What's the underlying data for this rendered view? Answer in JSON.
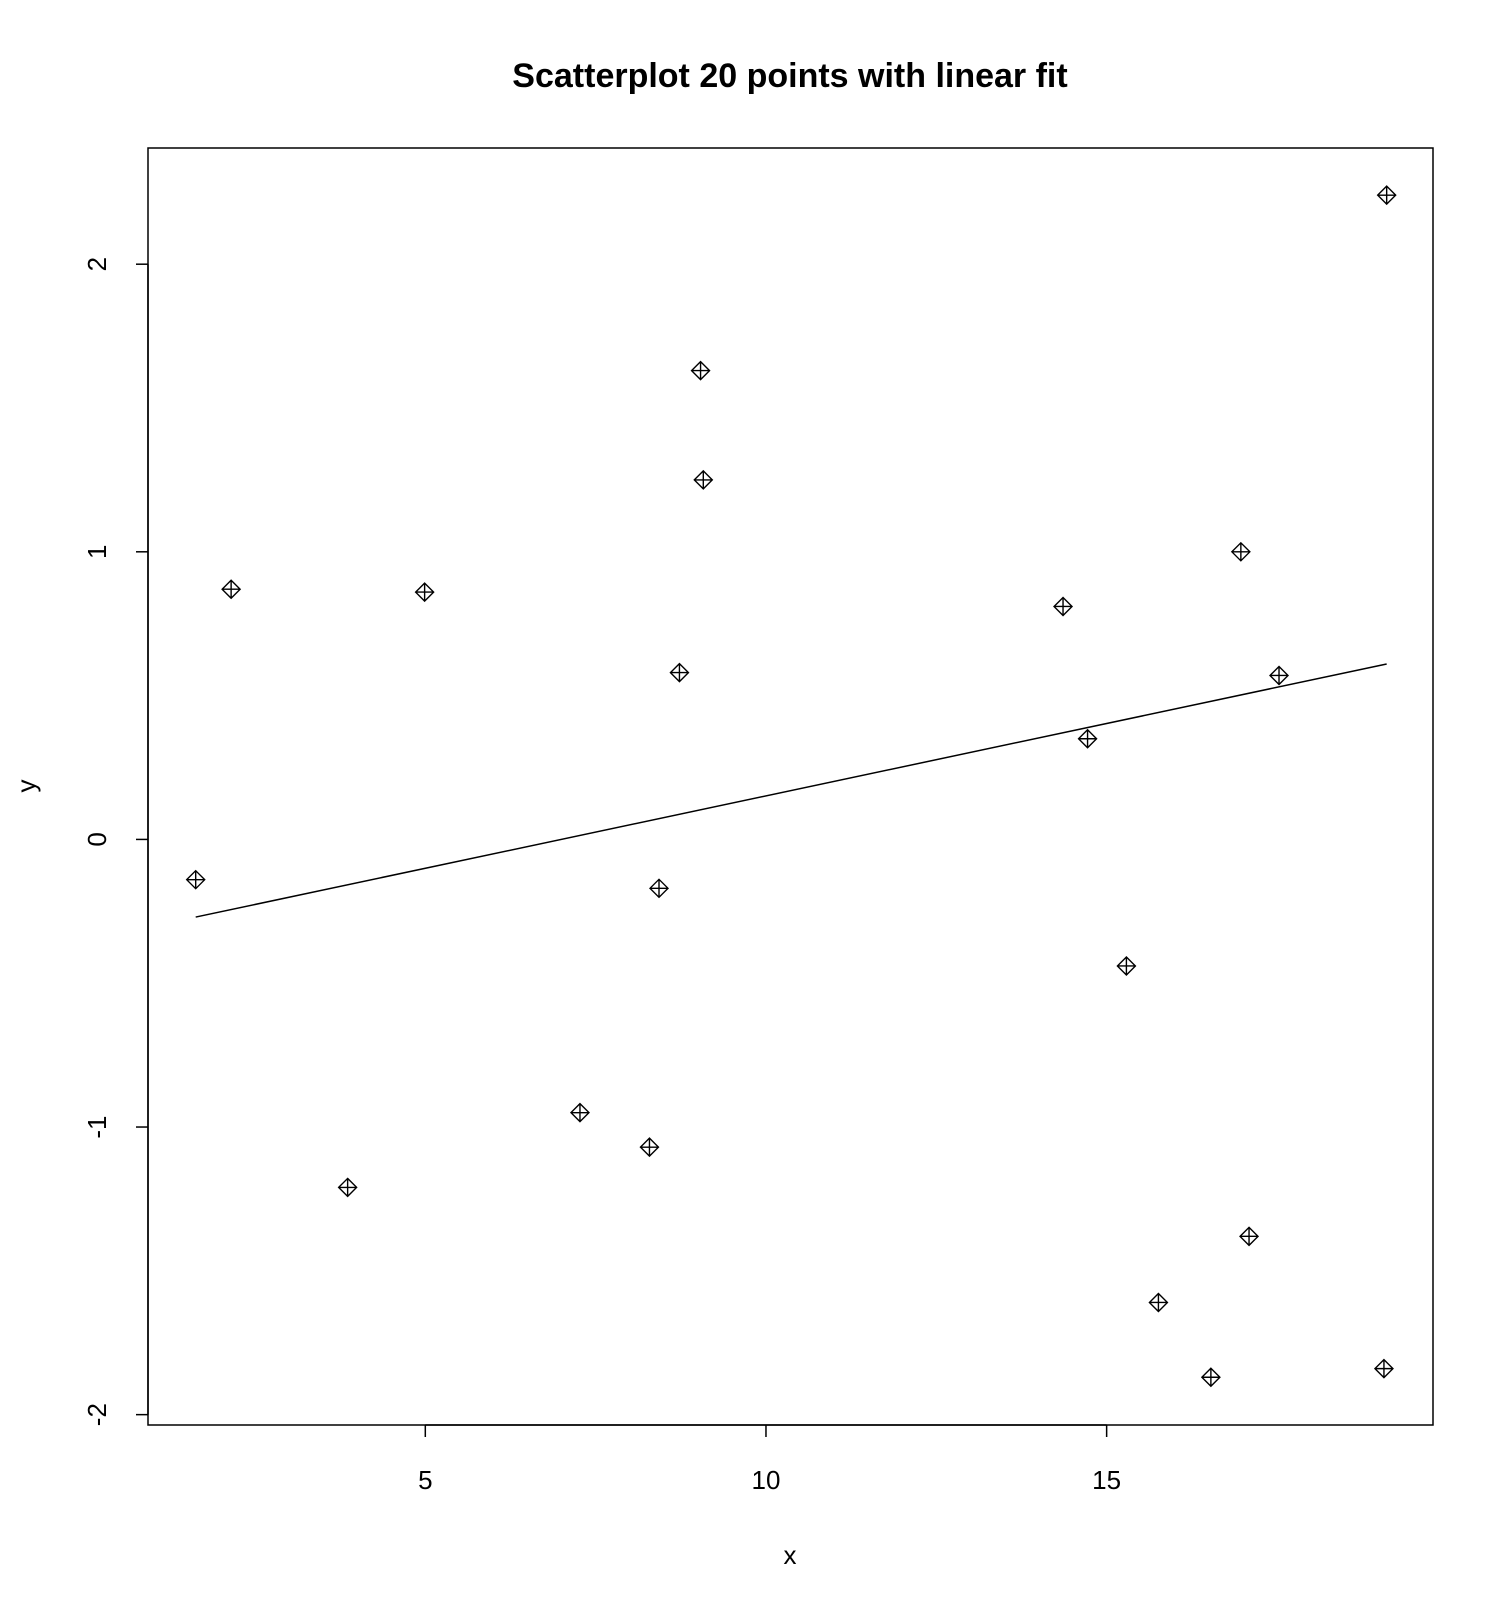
{
  "chart_data": {
    "type": "scatter",
    "title": "Scatterplot 20 points with linear fit",
    "xlabel": "x",
    "ylabel": "y",
    "xlim": [
      0.93,
      19.79
    ],
    "ylim": [
      -2.036,
      2.404
    ],
    "xticks": [
      5,
      10,
      15
    ],
    "xtick_labels": [
      "5",
      "10",
      "15"
    ],
    "yticks": [
      -2,
      -1,
      0,
      1,
      2
    ],
    "ytick_labels": [
      "-2",
      "-1",
      "0",
      "1",
      "2"
    ],
    "grid": false,
    "legend": "none",
    "marker": "diamond-plus",
    "colors": {
      "points": "#000000",
      "fit_line": "#000000",
      "frame": "#000000"
    },
    "points": [
      {
        "x": 1.63,
        "y": -0.14
      },
      {
        "x": 2.15,
        "y": 0.87
      },
      {
        "x": 3.86,
        "y": -1.21
      },
      {
        "x": 4.99,
        "y": 0.86
      },
      {
        "x": 7.27,
        "y": -0.95
      },
      {
        "x": 8.29,
        "y": -1.07
      },
      {
        "x": 8.43,
        "y": -0.17
      },
      {
        "x": 8.73,
        "y": 0.58
      },
      {
        "x": 9.04,
        "y": 1.63
      },
      {
        "x": 9.08,
        "y": 1.25
      },
      {
        "x": 14.36,
        "y": 0.81
      },
      {
        "x": 14.72,
        "y": 0.35
      },
      {
        "x": 15.29,
        "y": -0.44
      },
      {
        "x": 15.76,
        "y": -1.61
      },
      {
        "x": 16.53,
        "y": -1.87
      },
      {
        "x": 16.97,
        "y": 1.0
      },
      {
        "x": 17.09,
        "y": -1.38
      },
      {
        "x": 17.53,
        "y": 0.57
      },
      {
        "x": 19.07,
        "y": -1.84
      },
      {
        "x": 19.11,
        "y": 2.24
      }
    ],
    "fit_line": {
      "x_start": 1.63,
      "y_start": -0.27,
      "x_end": 19.11,
      "y_end": 0.61
    }
  }
}
